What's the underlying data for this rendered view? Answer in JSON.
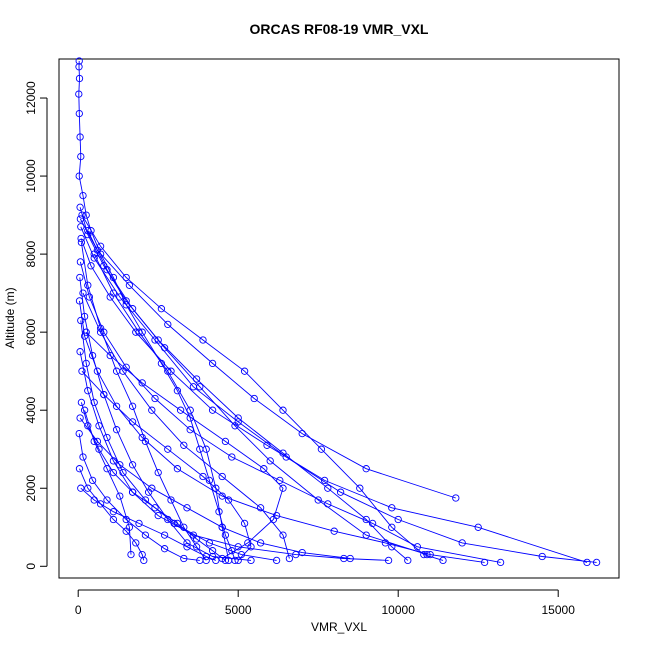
{
  "chart_data": {
    "type": "line",
    "title": "ORCAS RF08-19 VMR_VXL",
    "xlabel": "VMR_VXL",
    "ylabel": "Altitude (m)",
    "xlim": [
      -600,
      16900
    ],
    "ylim": [
      -300,
      13000
    ],
    "xticks": [
      0,
      5000,
      10000,
      15000
    ],
    "yticks": [
      0,
      2000,
      4000,
      6000,
      8000,
      10000,
      12000
    ],
    "marker": "open-circle",
    "grid": false,
    "color": "#0000ff",
    "series": [
      {
        "values": [
          [
            30,
            12950
          ],
          [
            25,
            12800
          ],
          [
            40,
            12500
          ],
          [
            20,
            12100
          ],
          [
            35,
            11600
          ],
          [
            60,
            11000
          ],
          [
            80,
            10500
          ],
          [
            30,
            10000
          ],
          [
            150,
            9500
          ],
          [
            250,
            9000
          ],
          [
            400,
            8600
          ],
          [
            700,
            8000
          ],
          [
            1100,
            7400
          ],
          [
            1500,
            6700
          ],
          [
            2000,
            6000
          ],
          [
            2600,
            5200
          ],
          [
            3100,
            4500
          ],
          [
            3500,
            3800
          ],
          [
            3800,
            3000
          ],
          [
            4100,
            2200
          ],
          [
            4400,
            1400
          ],
          [
            4600,
            800
          ],
          [
            4800,
            400
          ],
          [
            4900,
            150
          ]
        ]
      },
      {
        "values": [
          [
            60,
            9200
          ],
          [
            300,
            8500
          ],
          [
            800,
            7700
          ],
          [
            1500,
            6800
          ],
          [
            2500,
            5800
          ],
          [
            3700,
            4800
          ],
          [
            5000,
            3800
          ],
          [
            6400,
            2900
          ],
          [
            7800,
            2000
          ],
          [
            9000,
            1200
          ],
          [
            9800,
            500
          ],
          [
            10300,
            150
          ]
        ]
      },
      {
        "values": [
          [
            80,
            8700
          ],
          [
            500,
            7900
          ],
          [
            1300,
            6900
          ],
          [
            2400,
            5800
          ],
          [
            3600,
            4600
          ],
          [
            5000,
            3700
          ],
          [
            6500,
            2800
          ],
          [
            8200,
            1900
          ],
          [
            10000,
            1200
          ],
          [
            12000,
            600
          ],
          [
            14500,
            250
          ],
          [
            16200,
            100
          ]
        ]
      },
      {
        "values": [
          [
            70,
            8900
          ],
          [
            600,
            8100
          ],
          [
            1600,
            7200
          ],
          [
            2800,
            6200
          ],
          [
            4200,
            5200
          ],
          [
            5500,
            4300
          ],
          [
            7000,
            3400
          ],
          [
            9000,
            2500
          ],
          [
            11800,
            1750
          ]
        ]
      },
      {
        "values": [
          [
            90,
            8400
          ],
          [
            400,
            7700
          ],
          [
            1000,
            6900
          ],
          [
            1800,
            6000
          ],
          [
            2900,
            5000
          ],
          [
            4200,
            4000
          ],
          [
            5900,
            3100
          ],
          [
            7700,
            2200
          ],
          [
            9800,
            1500
          ],
          [
            12500,
            1000
          ],
          [
            15900,
            100
          ]
        ]
      },
      {
        "values": [
          [
            120,
            9000
          ],
          [
            700,
            8200
          ],
          [
            1500,
            7400
          ],
          [
            2600,
            6600
          ],
          [
            3900,
            5800
          ],
          [
            5200,
            5000
          ],
          [
            6400,
            4000
          ],
          [
            7600,
            3000
          ],
          [
            8800,
            2000
          ],
          [
            9800,
            1000
          ],
          [
            10800,
            300
          ],
          [
            11400,
            150
          ]
        ]
      },
      {
        "values": [
          [
            100,
            8300
          ],
          [
            300,
            7200
          ],
          [
            700,
            6100
          ],
          [
            1200,
            5000
          ],
          [
            1700,
            4100
          ],
          [
            2100,
            3200
          ],
          [
            2500,
            2400
          ],
          [
            2900,
            1700
          ],
          [
            3300,
            1000
          ],
          [
            3700,
            500
          ],
          [
            4000,
            150
          ]
        ]
      },
      {
        "values": [
          [
            50,
            7400
          ],
          [
            200,
            6400
          ],
          [
            450,
            5400
          ],
          [
            800,
            4400
          ],
          [
            1200,
            3500
          ],
          [
            1700,
            2600
          ],
          [
            2200,
            1900
          ],
          [
            2800,
            1200
          ],
          [
            3400,
            600
          ],
          [
            4200,
            250
          ],
          [
            5400,
            150
          ]
        ]
      },
      {
        "values": [
          [
            80,
            6300
          ],
          [
            250,
            5200
          ],
          [
            500,
            4200
          ],
          [
            900,
            3300
          ],
          [
            1400,
            2400
          ],
          [
            2100,
            1700
          ],
          [
            3000,
            1100
          ],
          [
            4100,
            600
          ],
          [
            5100,
            300
          ],
          [
            6200,
            150
          ]
        ]
      },
      {
        "values": [
          [
            60,
            5500
          ],
          [
            300,
            4500
          ],
          [
            650,
            3600
          ],
          [
            1100,
            2700
          ],
          [
            1700,
            1900
          ],
          [
            2500,
            1300
          ],
          [
            3600,
            800
          ],
          [
            5000,
            500
          ],
          [
            6800,
            300
          ],
          [
            8300,
            200
          ],
          [
            9700,
            150
          ]
        ]
      },
      {
        "values": [
          [
            40,
            6800
          ],
          [
            200,
            5900
          ],
          [
            600,
            5000
          ],
          [
            1200,
            4100
          ],
          [
            2000,
            3300
          ],
          [
            3100,
            2500
          ],
          [
            4500,
            1800
          ],
          [
            6200,
            1300
          ],
          [
            8000,
            900
          ],
          [
            9600,
            600
          ],
          [
            11000,
            300
          ],
          [
            12700,
            100
          ]
        ]
      },
      {
        "values": [
          [
            70,
            7800
          ],
          [
            350,
            6900
          ],
          [
            800,
            6000
          ],
          [
            1500,
            5100
          ],
          [
            2400,
            4300
          ],
          [
            3500,
            3500
          ],
          [
            4800,
            2800
          ],
          [
            6300,
            2200
          ],
          [
            7800,
            1600
          ],
          [
            9200,
            1100
          ],
          [
            10600,
            500
          ],
          [
            13200,
            100
          ]
        ]
      },
      {
        "values": [
          [
            100,
            4200
          ],
          [
            300,
            3600
          ],
          [
            650,
            3000
          ],
          [
            1100,
            2400
          ],
          [
            1700,
            1900
          ],
          [
            2400,
            1500
          ],
          [
            3100,
            1100
          ],
          [
            3700,
            700
          ],
          [
            4200,
            400
          ],
          [
            4600,
            150
          ]
        ]
      },
      {
        "values": [
          [
            30,
            3400
          ],
          [
            150,
            2800
          ],
          [
            450,
            2200
          ],
          [
            900,
            1700
          ],
          [
            1500,
            1200
          ],
          [
            2100,
            800
          ],
          [
            2700,
            450
          ],
          [
            3300,
            200
          ],
          [
            3800,
            150
          ]
        ]
      },
      {
        "values": [
          [
            40,
            2500
          ],
          [
            300,
            2000
          ],
          [
            700,
            1600
          ],
          [
            1100,
            1200
          ],
          [
            1500,
            900
          ],
          [
            1800,
            600
          ],
          [
            2000,
            300
          ],
          [
            2050,
            150
          ]
        ]
      },
      {
        "values": [
          [
            200,
            4000
          ],
          [
            500,
            3200
          ],
          [
            900,
            2500
          ],
          [
            1300,
            1800
          ],
          [
            1600,
            1000
          ],
          [
            1650,
            300
          ]
        ]
      },
      {
        "values": [
          [
            500,
            8000
          ],
          [
            1100,
            7000
          ],
          [
            1900,
            6000
          ],
          [
            2800,
            5000
          ],
          [
            3500,
            4000
          ],
          [
            4000,
            3000
          ],
          [
            4300,
            2000
          ],
          [
            4500,
            1000
          ],
          [
            4700,
            150
          ]
        ]
      },
      {
        "values": [
          [
            150,
            7000
          ],
          [
            700,
            6000
          ],
          [
            1400,
            5000
          ],
          [
            2300,
            4000
          ],
          [
            3300,
            3100
          ],
          [
            4500,
            2300
          ],
          [
            5700,
            1500
          ],
          [
            6400,
            800
          ],
          [
            6600,
            200
          ]
        ]
      },
      {
        "values": [
          [
            250,
            6000
          ],
          [
            1000,
            5400
          ],
          [
            2000,
            4700
          ],
          [
            3200,
            4000
          ],
          [
            4600,
            3200
          ],
          [
            5800,
            2500
          ],
          [
            6400,
            2000
          ],
          [
            6100,
            1200
          ],
          [
            5300,
            600
          ],
          [
            4500,
            200
          ]
        ]
      },
      {
        "values": [
          [
            120,
            5000
          ],
          [
            800,
            4400
          ],
          [
            1700,
            3700
          ],
          [
            2800,
            3000
          ],
          [
            3900,
            2300
          ],
          [
            4700,
            1700
          ],
          [
            5200,
            1100
          ],
          [
            5400,
            500
          ],
          [
            5000,
            150
          ]
        ]
      },
      {
        "values": [
          [
            60,
            3800
          ],
          [
            600,
            3200
          ],
          [
            1300,
            2600
          ],
          [
            2300,
            2000
          ],
          [
            3400,
            1500
          ],
          [
            4500,
            1000
          ],
          [
            5700,
            600
          ],
          [
            7000,
            350
          ],
          [
            8500,
            200
          ]
        ]
      },
      {
        "values": [
          [
            300,
            8600
          ],
          [
            900,
            7600
          ],
          [
            1700,
            6600
          ],
          [
            2700,
            5600
          ],
          [
            3800,
            4600
          ],
          [
            4900,
            3600
          ],
          [
            6000,
            2700
          ],
          [
            7500,
            1700
          ],
          [
            9000,
            800
          ],
          [
            10900,
            300
          ]
        ]
      },
      {
        "values": [
          [
            80,
            2000
          ],
          [
            500,
            1700
          ],
          [
            1100,
            1400
          ],
          [
            1900,
            1100
          ],
          [
            2700,
            800
          ],
          [
            3400,
            500
          ],
          [
            4000,
            250
          ],
          [
            4300,
            150
          ]
        ]
      }
    ]
  }
}
